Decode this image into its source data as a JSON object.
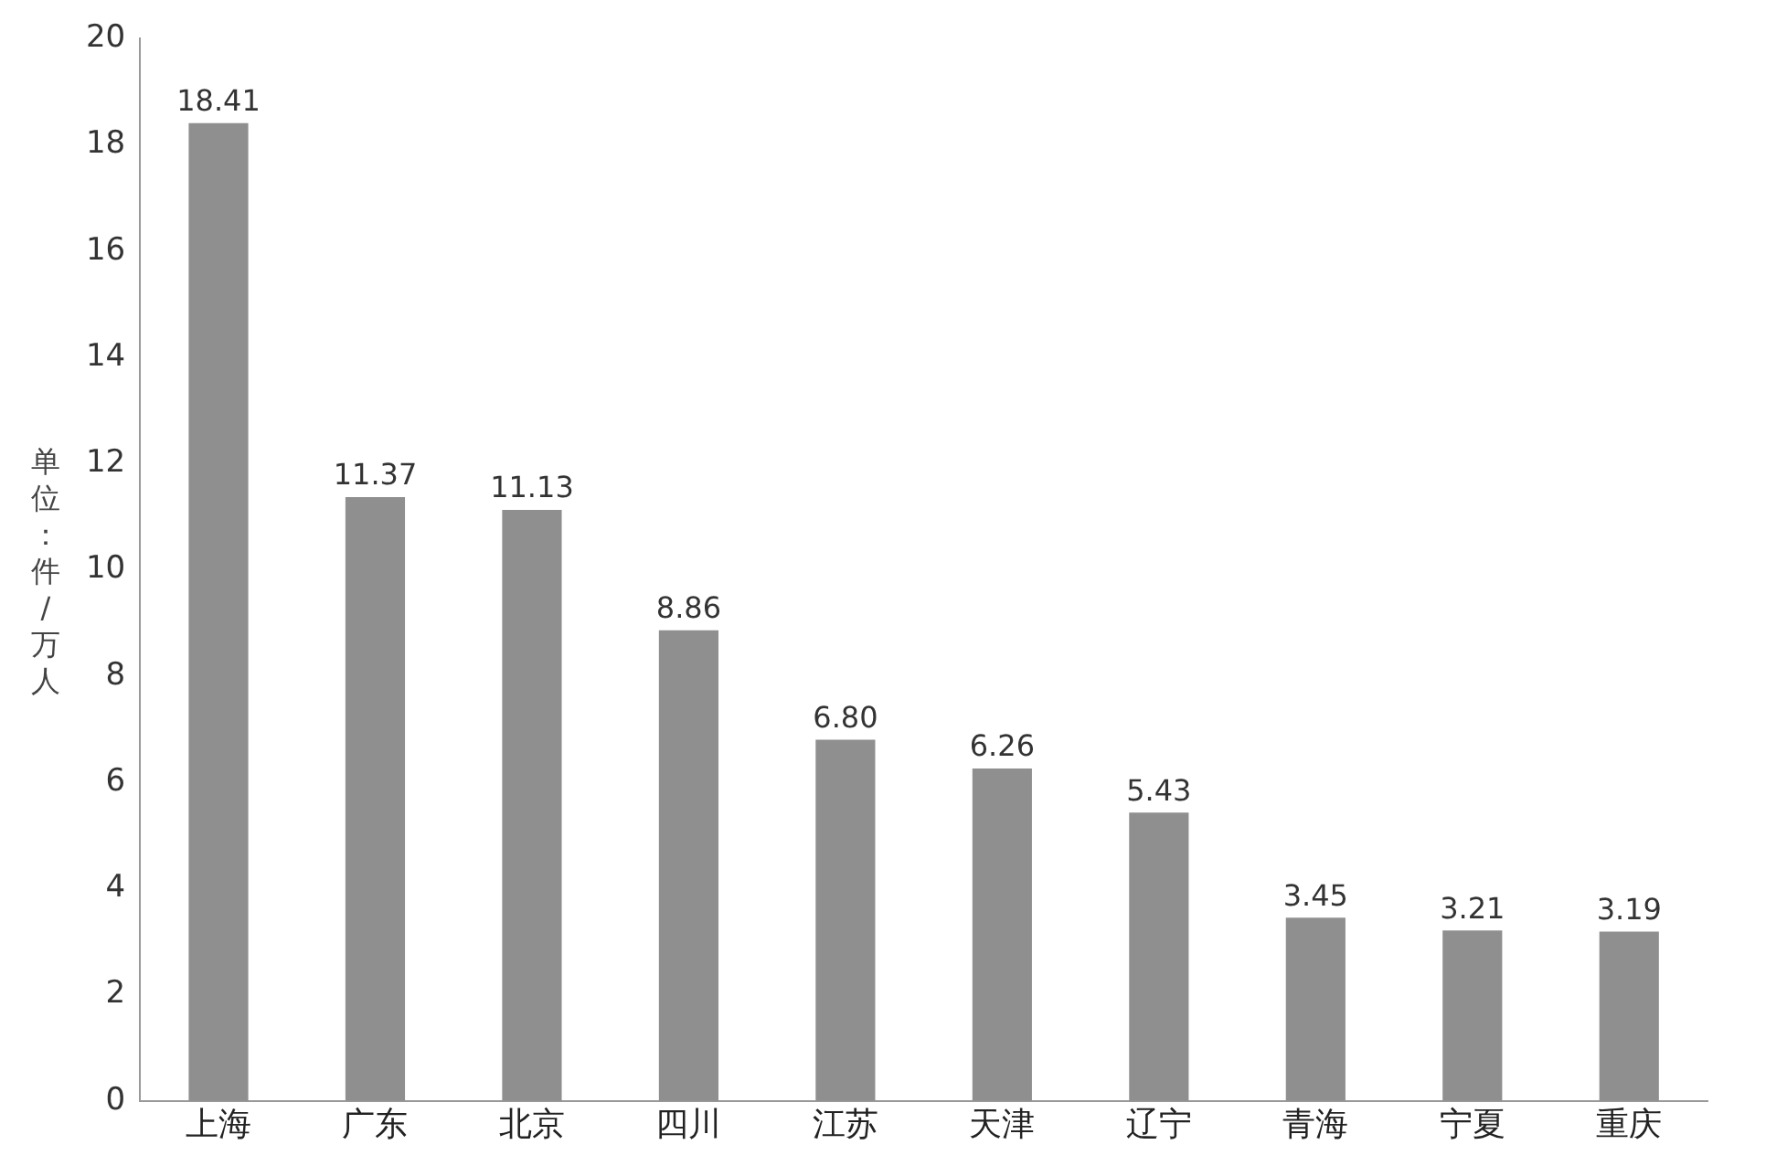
{
  "chart_data": {
    "type": "bar",
    "ylabel": "单位：件/万人",
    "categories": [
      "上海",
      "广东",
      "北京",
      "四川",
      "江苏",
      "天津",
      "辽宁",
      "青海",
      "宁夏",
      "重庆"
    ],
    "values": [
      18.41,
      11.37,
      11.13,
      8.86,
      6.8,
      6.26,
      5.43,
      3.45,
      3.21,
      3.19
    ],
    "value_labels": [
      "18.41",
      "11.37",
      "11.13",
      "8.86",
      "6.80",
      "6.26",
      "5.43",
      "3.45",
      "3.21",
      "3.19"
    ],
    "color": "#8f8f8f",
    "ylim": [
      0,
      20
    ],
    "yticks": [
      0,
      2,
      4,
      6,
      8,
      10,
      12,
      14,
      16,
      18,
      20
    ],
    "grid": false,
    "legend": false
  }
}
